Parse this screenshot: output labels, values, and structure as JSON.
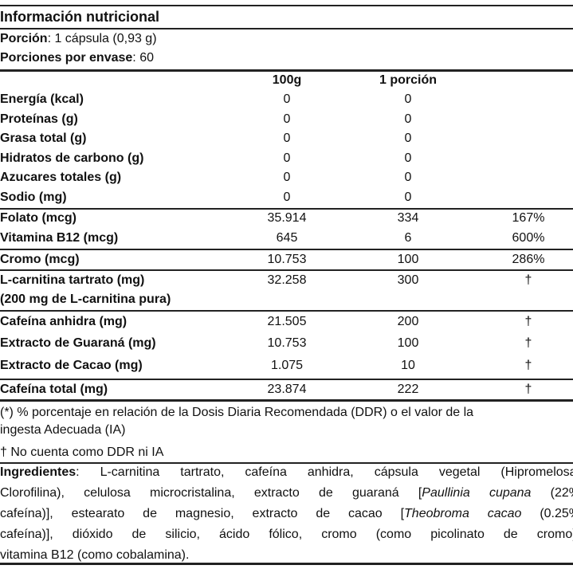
{
  "title": "Información nutricional",
  "serving": {
    "label": "Porción",
    "value": ": 1 cápsula (0,93 g)"
  },
  "servings_per_container": {
    "label": "Porciones por envase",
    "value": ": 60"
  },
  "columns": {
    "per100g": "100g",
    "per_serving": "1 porción"
  },
  "rows": [
    {
      "label": "Energía (kcal)",
      "per100g": "0",
      "per_serving": "0",
      "dv": ""
    },
    {
      "label": "Proteínas (g)",
      "per100g": "0",
      "per_serving": "0",
      "dv": ""
    },
    {
      "label": "Grasa total (g)",
      "per100g": "0",
      "per_serving": "0",
      "dv": ""
    },
    {
      "label": "Hidratos de carbono (g)",
      "per100g": "0",
      "per_serving": "0",
      "dv": ""
    },
    {
      "label": "Azucares totales (g)",
      "per100g": "0",
      "per_serving": "0",
      "dv": ""
    },
    {
      "label": "Sodio (mg)",
      "per100g": "0",
      "per_serving": "0",
      "dv": ""
    },
    {
      "label": "Folato (mcg)",
      "per100g": "35.914",
      "per_serving": "334",
      "dv": "167%"
    },
    {
      "label": "Vitamina B12 (mcg)",
      "per100g": "645",
      "per_serving": "6",
      "dv": "600%"
    },
    {
      "label": "Cromo (mcg)",
      "per100g": "10.753",
      "per_serving": "100",
      "dv": "286%"
    },
    {
      "label": "L-carnitina tartrato (mg)",
      "sublabel": "(200 mg de L-carnitina pura)",
      "per100g": "32.258",
      "per_serving": "300",
      "dv": "†"
    },
    {
      "label": "Cafeína anhidra (mg)",
      "per100g": "21.505",
      "per_serving": "200",
      "dv": "†"
    },
    {
      "label": "Extracto de Guaraná (mg)",
      "per100g": "10.753",
      "per_serving": "100",
      "dv": "†"
    },
    {
      "label": "Extracto de Cacao (mg)",
      "per100g": "1.075",
      "per_serving": "10",
      "dv": "†"
    },
    {
      "label": "Cafeína total (mg)",
      "per100g": "23.874",
      "per_serving": "222",
      "dv": "†"
    }
  ],
  "footnotes": {
    "line1": "(*) % porcentaje en relación de la Dosis Diaria Recomendada (DDR) o el valor de la",
    "line2": "ingesta Adecuada (IA)",
    "dagger": "† No cuenta como DDR ni IA"
  },
  "ingredients": {
    "label": "Ingredientes",
    "l1": ": L-carnitina tartrato, cafeína anhidra, cápsula vegetal (Hipromelosa,",
    "l2a": "Clorofilina), celulosa microcristalina, extracto de guaraná [",
    "l2i": "Paullinia cupana",
    "l2b": " (22%",
    "l3a": "cafeína)], estearato de magnesio, extracto de cacao [",
    "l3i": "Theobroma cacao",
    "l3b": " (0.25%",
    "l4": "cafeína)], dióxido de silicio, ácido fólico, cromo (como picolinato de cromo),",
    "l5": "vitamina B12 (como cobalamina)."
  }
}
